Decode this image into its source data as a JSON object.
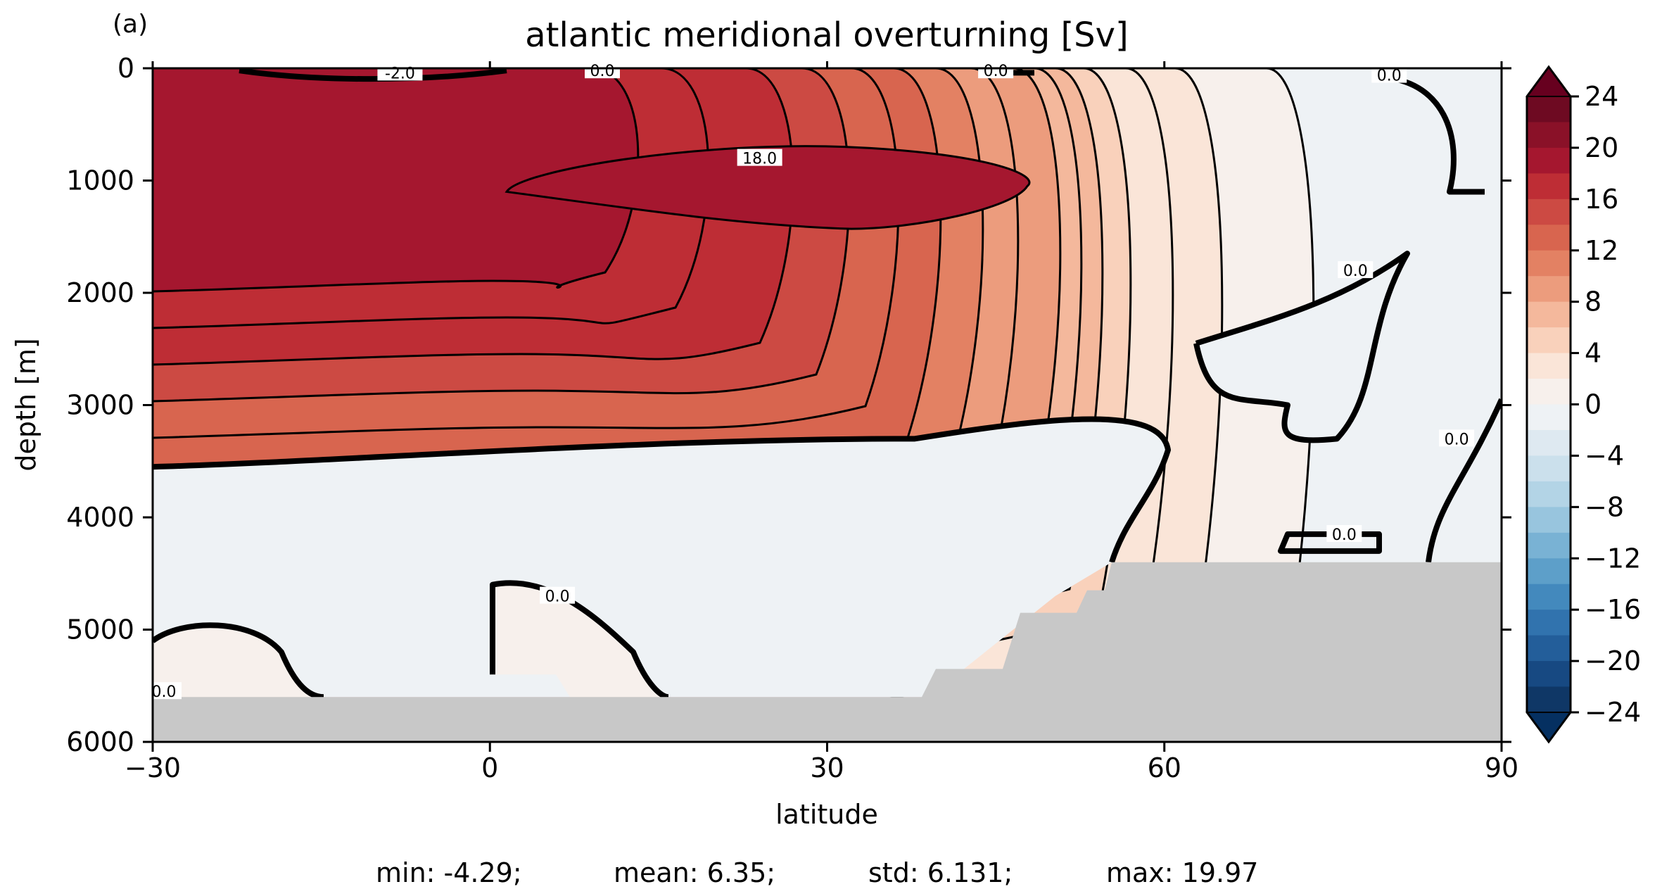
{
  "panel_label": "(a)",
  "chart_data": {
    "type": "contour",
    "title": "atlantic meridional overturning [Sv]",
    "xlabel": "latitude",
    "ylabel": "depth [m]",
    "xlim": [
      -30,
      90
    ],
    "ylim": [
      6000,
      0
    ],
    "y_inverted": true,
    "x_ticks": [
      -30,
      0,
      30,
      60,
      90
    ],
    "x_tick_labels": [
      "−30",
      "0",
      "30",
      "60",
      "90"
    ],
    "y_ticks": [
      0,
      1000,
      2000,
      3000,
      4000,
      5000,
      6000
    ],
    "y_tick_labels": [
      "0",
      "1000",
      "2000",
      "3000",
      "4000",
      "5000",
      "6000"
    ],
    "colormap": "RdBu_r",
    "contour_levels_step": 2,
    "contour_levels": [
      -24,
      24
    ],
    "zero_contour": "bold",
    "land_mask_color": "#c8c8c8",
    "contour_labels": [
      {
        "text": "-2.0",
        "lat": -8,
        "depth": 40
      },
      {
        "text": "0.0",
        "lat": 10,
        "depth": 20
      },
      {
        "text": "18.0",
        "lat": 24,
        "depth": 800
      },
      {
        "text": "0.0",
        "lat": 45,
        "depth": 20
      },
      {
        "text": "0.0",
        "lat": 80,
        "depth": 60
      },
      {
        "text": "0.0",
        "lat": 77,
        "depth": 1800
      },
      {
        "text": "0.0",
        "lat": 86,
        "depth": 3300
      },
      {
        "text": "0.0",
        "lat": 76,
        "depth": 4150
      },
      {
        "text": "0.0",
        "lat": 6,
        "depth": 4700
      },
      {
        "text": "0.0",
        "lat": -29,
        "depth": 5550
      }
    ],
    "colorbar": {
      "min": -24,
      "max": 24,
      "step": 2,
      "extend": "both",
      "tick_labels": [
        "24",
        "20",
        "16",
        "12",
        "8",
        "4",
        "0",
        "−4",
        "−8",
        "−12",
        "−16",
        "−20",
        "−24"
      ],
      "colors": [
        "#6e0a22",
        "#8a1128",
        "#a5172f",
        "#be2d35",
        "#cc4a43",
        "#d8654f",
        "#e38163",
        "#ec9c7d",
        "#f4b89c",
        "#f9d1bb",
        "#fae5d8",
        "#f7f0ec",
        "#eef2f5",
        "#dee9f1",
        "#cbe0ec",
        "#b3d4e6",
        "#98c5de",
        "#79b2d4",
        "#5d9fc9",
        "#4389bd",
        "#3173ae",
        "#235e9a",
        "#174982",
        "#0f3766"
      ]
    },
    "stats": {
      "min": "min: -4.29;",
      "mean": "mean: 6.35;",
      "std": "std: 6.131;",
      "max": "max: 19.97"
    }
  }
}
